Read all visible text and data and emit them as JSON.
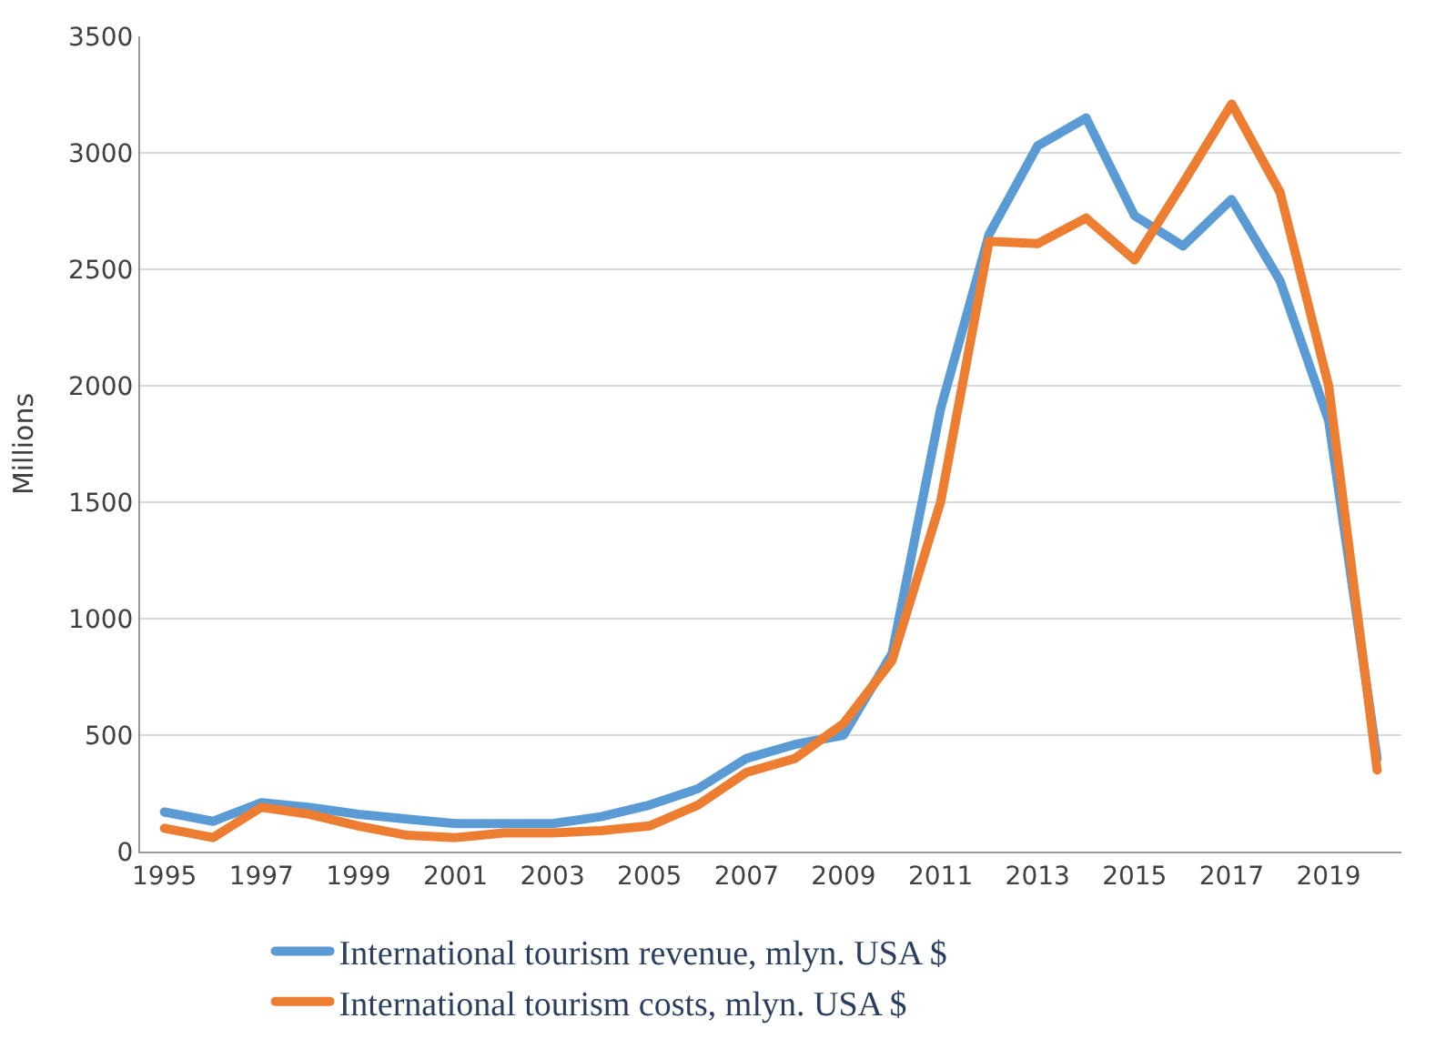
{
  "chart_data": {
    "type": "line",
    "ylabel": "Millions",
    "x": [
      1995,
      1996,
      1997,
      1998,
      1999,
      2000,
      2001,
      2002,
      2003,
      2004,
      2005,
      2006,
      2007,
      2008,
      2009,
      2010,
      2011,
      2012,
      2013,
      2014,
      2015,
      2016,
      2017,
      2018,
      2019,
      2020
    ],
    "series": [
      {
        "name": "International tourism revenue, mlyn. USA $",
        "color": "#5b9bd5",
        "values": [
          170,
          130,
          210,
          190,
          160,
          140,
          120,
          120,
          120,
          150,
          200,
          270,
          400,
          460,
          500,
          850,
          1900,
          2650,
          3030,
          3150,
          2730,
          2600,
          2800,
          2450,
          1850,
          400
        ]
      },
      {
        "name": "International tourism costs, mlyn. USA $",
        "color": "#ed7d31",
        "values": [
          100,
          60,
          190,
          160,
          110,
          70,
          60,
          80,
          80,
          90,
          110,
          200,
          340,
          400,
          550,
          820,
          1500,
          2620,
          2610,
          2720,
          2540,
          2870,
          3210,
          2830,
          2000,
          350
        ]
      }
    ],
    "xlim": [
      1994.5,
      2020.5
    ],
    "xticks": [
      1995,
      1997,
      1999,
      2001,
      2003,
      2005,
      2007,
      2009,
      2011,
      2013,
      2015,
      2017,
      2019
    ],
    "ylim": [
      0,
      3500
    ],
    "yticks": [
      0,
      500,
      1000,
      1500,
      2000,
      2500,
      3000,
      3500
    ],
    "grid": "y",
    "legend": "bottom",
    "marker": "none",
    "line_style": "solid"
  }
}
